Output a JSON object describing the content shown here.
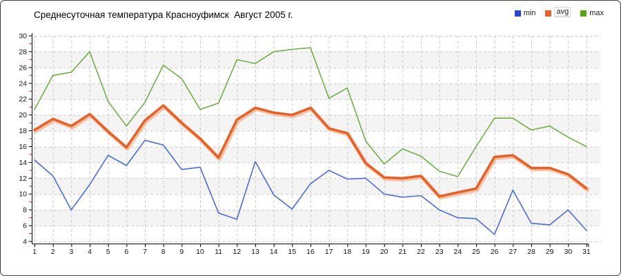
{
  "title": "Среднесуточная температура Красноуфимск  Август 2005 г.",
  "legend": [
    {
      "label": "min",
      "color": "#2447d4",
      "highlighted": false
    },
    {
      "label": "avg",
      "color": "#e4622a",
      "highlighted": true
    },
    {
      "label": "max",
      "color": "#56a414",
      "highlighted": false
    }
  ],
  "chart_data": {
    "type": "line",
    "title": "Среднесуточная температура Красноуфимск  Август 2005 г.",
    "xlabel": "",
    "ylabel": "",
    "x": [
      1,
      2,
      3,
      4,
      5,
      6,
      7,
      8,
      9,
      10,
      11,
      12,
      13,
      14,
      15,
      16,
      17,
      18,
      19,
      20,
      21,
      22,
      23,
      24,
      25,
      26,
      27,
      28,
      29,
      30,
      31
    ],
    "ylim": [
      4,
      30
    ],
    "ytick_step": 2,
    "grid": true,
    "legend_position": "top-right",
    "series": [
      {
        "name": "min",
        "color": "#4a6bd8",
        "width": 1.6,
        "values": [
          14.3,
          12.3,
          8.0,
          11.2,
          14.9,
          13.6,
          16.8,
          16.2,
          13.1,
          13.4,
          7.6,
          6.8,
          14.1,
          9.9,
          8.1,
          11.3,
          13.0,
          11.9,
          12.0,
          10.0,
          9.6,
          9.8,
          8.0,
          7.0,
          6.9,
          4.9,
          10.5,
          6.3,
          6.1,
          8.0,
          5.4
        ]
      },
      {
        "name": "avg",
        "color": "#e4622a",
        "width": 3.6,
        "halo": "#f5b28c",
        "values": [
          18.1,
          19.5,
          18.6,
          20.1,
          17.9,
          15.9,
          19.3,
          21.2,
          19.0,
          17.0,
          14.6,
          19.4,
          20.9,
          20.3,
          20.0,
          20.9,
          18.3,
          17.7,
          13.9,
          12.1,
          12.0,
          12.3,
          9.7,
          10.2,
          10.7,
          14.7,
          14.9,
          13.3,
          13.3,
          12.5,
          10.7
        ]
      },
      {
        "name": "max",
        "color": "#6fae46",
        "width": 1.6,
        "values": [
          20.7,
          25.0,
          25.4,
          28.0,
          21.7,
          18.6,
          21.6,
          26.3,
          24.6,
          20.7,
          21.5,
          27.0,
          26.5,
          28.0,
          28.3,
          28.5,
          22.1,
          23.4,
          16.7,
          13.8,
          15.7,
          14.8,
          12.9,
          12.2,
          16.0,
          19.6,
          19.6,
          18.1,
          18.6,
          17.2,
          16.0
        ]
      }
    ],
    "style": {
      "grid_color": "#cbcbcb",
      "band_color": "#f4f4f4",
      "axis_color": "#000000",
      "minor_tick_color": "#cc1100",
      "tick_label_color": "#111111"
    }
  }
}
